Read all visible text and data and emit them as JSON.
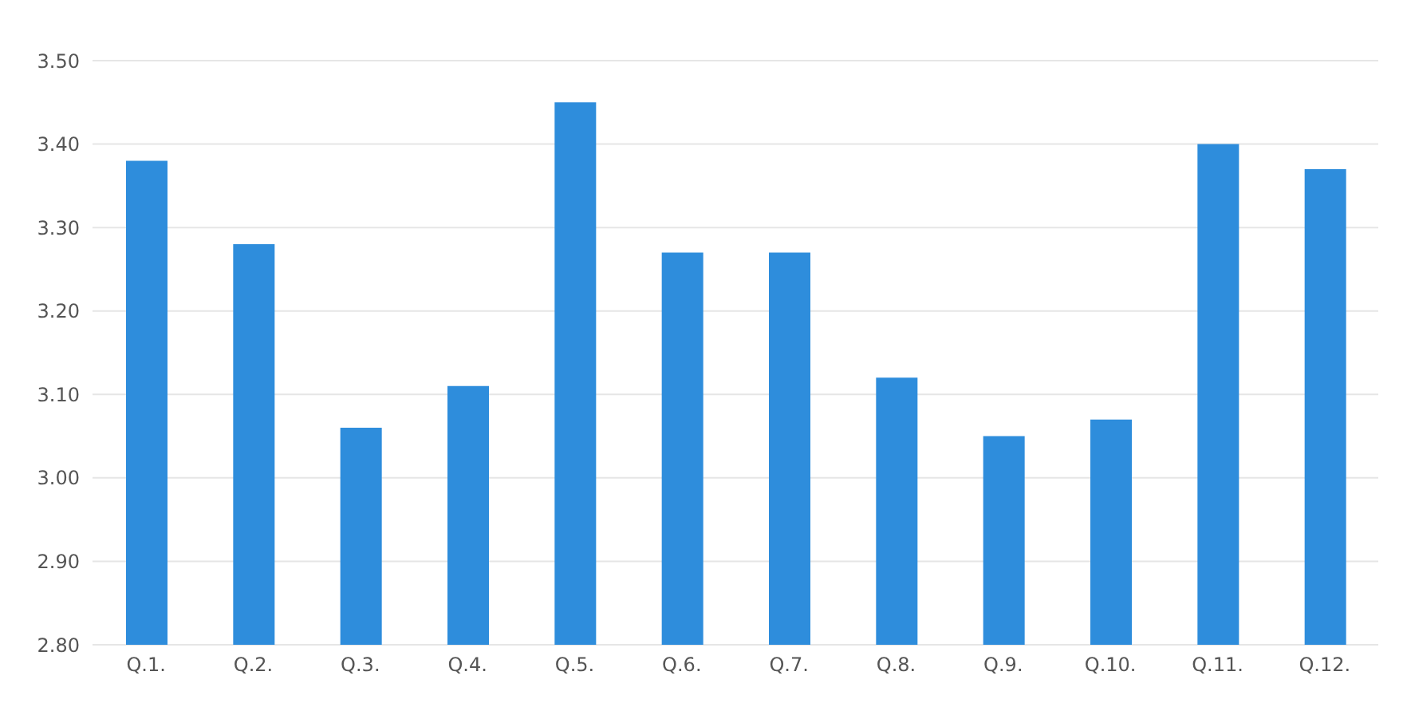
{
  "chart_data": {
    "type": "bar",
    "categories": [
      "Q.1.",
      "Q.2.",
      "Q.3.",
      "Q.4.",
      "Q.5.",
      "Q.6.",
      "Q.7.",
      "Q.8.",
      "Q.9.",
      "Q.10.",
      "Q.11.",
      "Q.12."
    ],
    "values": [
      3.38,
      3.28,
      3.06,
      3.11,
      3.45,
      3.27,
      3.27,
      3.12,
      3.05,
      3.07,
      3.4,
      3.37
    ],
    "color": "#2e8ddc",
    "ylim": [
      2.8,
      3.5
    ],
    "yticks": [
      {
        "value": 2.8,
        "label": "2.80"
      },
      {
        "value": 2.9,
        "label": "2.90"
      },
      {
        "value": 3.0,
        "label": "3.00"
      },
      {
        "value": 3.1,
        "label": "3.10"
      },
      {
        "value": 3.2,
        "label": "3.20"
      },
      {
        "value": 3.3,
        "label": "3.30"
      },
      {
        "value": 3.4,
        "label": "3.40"
      },
      {
        "value": 3.5,
        "label": "3.50"
      }
    ],
    "grid": "y"
  }
}
